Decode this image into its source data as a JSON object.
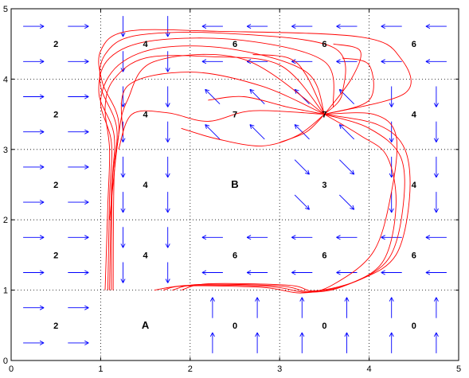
{
  "chart_data": {
    "type": "line",
    "title": "",
    "xlabel": "",
    "ylabel": "",
    "xlim": [
      0,
      5
    ],
    "ylim": [
      0,
      5
    ],
    "xticks": [
      "0",
      "1",
      "2",
      "3",
      "4",
      "5"
    ],
    "yticks": [
      "0",
      "1",
      "2",
      "3",
      "4",
      "5"
    ],
    "grid": "dotted",
    "colors": {
      "arrows": "#0000ff",
      "trajectories": "#ff0000",
      "grid": "#000000"
    },
    "cell_labels": [
      {
        "x": 0.5,
        "y": 4.5,
        "text": "2"
      },
      {
        "x": 1.5,
        "y": 4.5,
        "text": "4"
      },
      {
        "x": 2.5,
        "y": 4.5,
        "text": "6"
      },
      {
        "x": 3.5,
        "y": 4.5,
        "text": "6"
      },
      {
        "x": 4.5,
        "y": 4.5,
        "text": "6"
      },
      {
        "x": 0.5,
        "y": 3.5,
        "text": "2"
      },
      {
        "x": 1.5,
        "y": 3.5,
        "text": "4"
      },
      {
        "x": 2.5,
        "y": 3.5,
        "text": "7"
      },
      {
        "x": 3.5,
        "y": 3.5,
        "text": "7"
      },
      {
        "x": 4.5,
        "y": 3.5,
        "text": "4"
      },
      {
        "x": 0.5,
        "y": 2.5,
        "text": "2"
      },
      {
        "x": 1.5,
        "y": 2.5,
        "text": "4"
      },
      {
        "x": 2.5,
        "y": 2.5,
        "text": "B"
      },
      {
        "x": 3.5,
        "y": 2.5,
        "text": "3"
      },
      {
        "x": 4.5,
        "y": 2.5,
        "text": "4"
      },
      {
        "x": 0.5,
        "y": 1.5,
        "text": "2"
      },
      {
        "x": 1.5,
        "y": 1.5,
        "text": "4"
      },
      {
        "x": 2.5,
        "y": 1.5,
        "text": "6"
      },
      {
        "x": 3.5,
        "y": 1.5,
        "text": "6"
      },
      {
        "x": 4.5,
        "y": 1.5,
        "text": "6"
      },
      {
        "x": 0.5,
        "y": 0.5,
        "text": "2"
      },
      {
        "x": 1.5,
        "y": 0.5,
        "text": "A"
      },
      {
        "x": 2.5,
        "y": 0.5,
        "text": "0"
      },
      {
        "x": 3.5,
        "y": 0.5,
        "text": "0"
      },
      {
        "x": 4.5,
        "y": 0.5,
        "text": "0"
      }
    ],
    "vector_field": [
      {
        "cell": [
          0,
          4
        ],
        "dx": 1,
        "dy": 0
      },
      {
        "cell": [
          1,
          4
        ],
        "dx": 0,
        "dy": -1
      },
      {
        "cell": [
          2,
          4
        ],
        "dx": -1,
        "dy": 0
      },
      {
        "cell": [
          3,
          4
        ],
        "dx": -1,
        "dy": 0
      },
      {
        "cell": [
          4,
          4
        ],
        "dx": -1,
        "dy": 0
      },
      {
        "cell": [
          0,
          3
        ],
        "dx": 1,
        "dy": 0
      },
      {
        "cell": [
          1,
          3
        ],
        "dx": 0,
        "dy": -1
      },
      {
        "cell": [
          2,
          3
        ],
        "dx": -0.7,
        "dy": 0.7
      },
      {
        "cell": [
          3,
          3
        ],
        "dx": -0.7,
        "dy": 0.7
      },
      {
        "cell": [
          4,
          3
        ],
        "dx": 0,
        "dy": -1
      },
      {
        "cell": [
          0,
          2
        ],
        "dx": 1,
        "dy": 0
      },
      {
        "cell": [
          1,
          2
        ],
        "dx": 0,
        "dy": -1
      },
      {
        "cell": [
          2,
          2
        ],
        "dx": 0,
        "dy": 0
      },
      {
        "cell": [
          3,
          2
        ],
        "dx": 0.7,
        "dy": -0.7
      },
      {
        "cell": [
          4,
          2
        ],
        "dx": 0,
        "dy": -1
      },
      {
        "cell": [
          0,
          1
        ],
        "dx": 1,
        "dy": 0
      },
      {
        "cell": [
          1,
          1
        ],
        "dx": 0,
        "dy": -1
      },
      {
        "cell": [
          2,
          1
        ],
        "dx": -1,
        "dy": 0
      },
      {
        "cell": [
          3,
          1
        ],
        "dx": -1,
        "dy": 0
      },
      {
        "cell": [
          4,
          1
        ],
        "dx": -1,
        "dy": 0
      },
      {
        "cell": [
          0,
          0
        ],
        "dx": 1,
        "dy": 0
      },
      {
        "cell": [
          1,
          0
        ],
        "dx": 0,
        "dy": 0
      },
      {
        "cell": [
          2,
          0
        ],
        "dx": 0,
        "dy": 1
      },
      {
        "cell": [
          3,
          0
        ],
        "dx": 0,
        "dy": 1
      },
      {
        "cell": [
          4,
          0
        ],
        "dx": 0,
        "dy": 1
      }
    ],
    "trajectories": [
      {
        "points": [
          [
            1.05,
            1.0
          ],
          [
            1.08,
            2.2
          ],
          [
            1.1,
            3.0
          ],
          [
            1.05,
            3.6
          ],
          [
            1.15,
            4.0
          ],
          [
            1.5,
            4.3
          ],
          [
            2.2,
            4.32
          ],
          [
            3.0,
            4.2
          ],
          [
            3.5,
            3.5
          ]
        ]
      },
      {
        "points": [
          [
            1.08,
            1.0
          ],
          [
            1.1,
            2.3
          ],
          [
            1.12,
            3.1
          ],
          [
            1.0,
            3.7
          ],
          [
            1.2,
            4.2
          ],
          [
            1.7,
            4.45
          ],
          [
            2.5,
            4.42
          ],
          [
            3.3,
            4.1
          ],
          [
            3.5,
            3.5
          ]
        ]
      },
      {
        "points": [
          [
            1.1,
            1.0
          ],
          [
            1.12,
            2.4
          ],
          [
            1.15,
            3.2
          ],
          [
            0.98,
            3.8
          ],
          [
            1.1,
            4.3
          ],
          [
            1.6,
            4.55
          ],
          [
            2.6,
            4.55
          ],
          [
            3.5,
            4.25
          ],
          [
            3.6,
            3.6
          ]
        ]
      },
      {
        "points": [
          [
            1.12,
            1.0
          ],
          [
            1.13,
            2.5
          ],
          [
            1.18,
            3.3
          ],
          [
            1.0,
            3.9
          ],
          [
            1.05,
            4.35
          ],
          [
            1.4,
            4.62
          ],
          [
            2.4,
            4.65
          ],
          [
            3.6,
            4.45
          ],
          [
            3.7,
            3.8
          ],
          [
            3.5,
            3.5
          ]
        ]
      },
      {
        "points": [
          [
            1.14,
            1.0
          ],
          [
            1.15,
            2.6
          ],
          [
            1.2,
            3.4
          ],
          [
            1.02,
            3.95
          ],
          [
            1.0,
            4.4
          ],
          [
            1.3,
            4.68
          ],
          [
            2.3,
            4.68
          ],
          [
            3.9,
            4.6
          ],
          [
            4.35,
            4.3
          ],
          [
            4.4,
            3.8
          ],
          [
            3.5,
            3.5
          ]
        ]
      },
      {
        "points": [
          [
            1.1,
            2.0
          ],
          [
            1.2,
            3.2
          ],
          [
            1.3,
            3.7
          ],
          [
            1.6,
            4.25
          ],
          [
            2.6,
            4.28
          ],
          [
            3.5,
            3.5
          ]
        ]
      },
      {
        "points": [
          [
            1.2,
            3.0
          ],
          [
            1.35,
            3.5
          ],
          [
            1.75,
            3.52
          ],
          [
            2.2,
            3.4
          ],
          [
            2.7,
            3.55
          ],
          [
            3.5,
            3.5
          ]
        ]
      },
      {
        "points": [
          [
            1.25,
            3.2
          ],
          [
            1.3,
            3.9
          ],
          [
            2.0,
            4.1
          ],
          [
            2.8,
            3.9
          ],
          [
            3.5,
            3.5
          ]
        ]
      },
      {
        "points": [
          [
            3.5,
            3.5
          ],
          [
            3.9,
            3.2
          ],
          [
            4.2,
            2.9
          ],
          [
            4.3,
            2.2
          ],
          [
            4.15,
            1.4
          ],
          [
            3.7,
            1.05
          ],
          [
            3.3,
            0.97
          ],
          [
            2.9,
            1.05
          ],
          [
            2.0,
            1.07
          ],
          [
            1.6,
            1.0
          ]
        ]
      },
      {
        "points": [
          [
            3.5,
            3.5
          ],
          [
            4.0,
            3.3
          ],
          [
            4.35,
            2.9
          ],
          [
            4.38,
            2.2
          ],
          [
            4.22,
            1.45
          ],
          [
            3.8,
            1.1
          ],
          [
            3.35,
            0.98
          ],
          [
            3.0,
            1.06
          ],
          [
            2.1,
            1.08
          ],
          [
            1.8,
            1.0
          ]
        ]
      },
      {
        "points": [
          [
            3.5,
            3.5
          ],
          [
            4.1,
            3.35
          ],
          [
            4.4,
            3.0
          ],
          [
            4.45,
            2.3
          ],
          [
            4.3,
            1.5
          ],
          [
            3.9,
            1.15
          ],
          [
            3.4,
            0.99
          ],
          [
            3.1,
            1.07
          ],
          [
            2.2,
            1.09
          ],
          [
            1.9,
            1.0
          ]
        ]
      },
      {
        "points": [
          [
            3.5,
            3.5
          ],
          [
            4.05,
            3.5
          ],
          [
            4.3,
            3.2
          ],
          [
            4.25,
            2.4
          ],
          [
            4.05,
            1.55
          ],
          [
            3.6,
            1.08
          ],
          [
            3.25,
            0.96
          ],
          [
            2.8,
            1.04
          ],
          [
            1.95,
            1.06
          ],
          [
            1.7,
            1.0
          ]
        ]
      },
      {
        "points": [
          [
            3.5,
            3.5
          ],
          [
            3.2,
            3.2
          ],
          [
            2.8,
            3.05
          ],
          [
            2.3,
            3.15
          ],
          [
            1.9,
            3.3
          ]
        ]
      },
      {
        "points": [
          [
            3.5,
            3.5
          ],
          [
            3.3,
            3.25
          ],
          [
            3.0,
            3.1
          ]
        ]
      },
      {
        "points": [
          [
            3.5,
            3.5
          ],
          [
            3.1,
            3.6
          ],
          [
            2.6,
            3.75
          ],
          [
            2.2,
            3.7
          ]
        ]
      },
      {
        "points": [
          [
            3.5,
            3.5
          ],
          [
            3.3,
            4.05
          ],
          [
            3.1,
            4.3
          ],
          [
            2.7,
            4.35
          ]
        ]
      },
      {
        "points": [
          [
            3.5,
            3.5
          ],
          [
            3.8,
            4.0
          ],
          [
            3.9,
            4.4
          ],
          [
            3.6,
            4.5
          ]
        ]
      },
      {
        "points": [
          [
            3.5,
            3.5
          ],
          [
            4.0,
            3.7
          ],
          [
            4.0,
            4.2
          ],
          [
            3.7,
            4.3
          ]
        ]
      }
    ]
  }
}
